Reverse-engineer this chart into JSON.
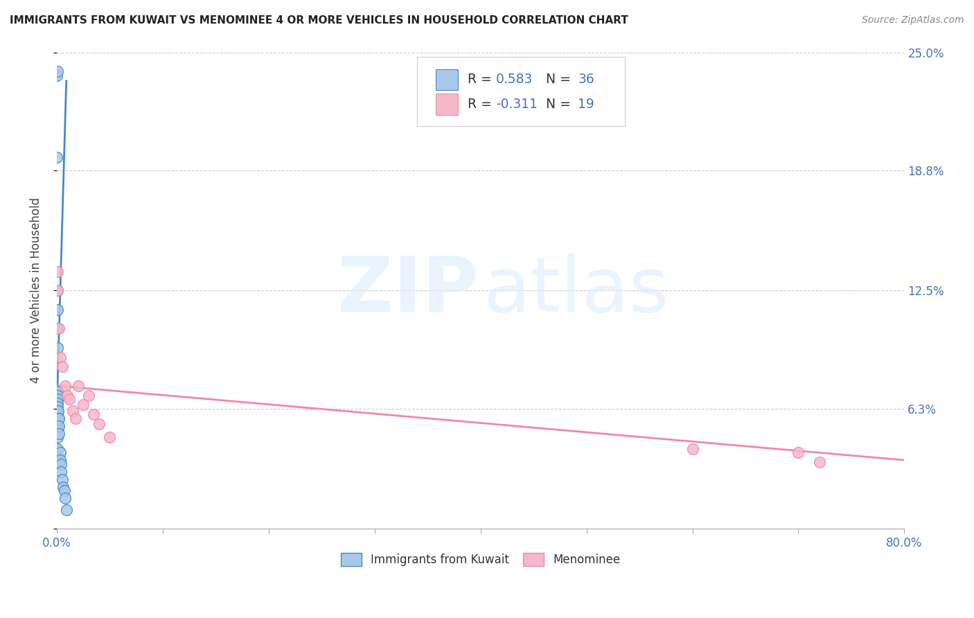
{
  "title": "IMMIGRANTS FROM KUWAIT VS MENOMINEE 4 OR MORE VEHICLES IN HOUSEHOLD CORRELATION CHART",
  "source": "Source: ZipAtlas.com",
  "ylabel": "4 or more Vehicles in Household",
  "xlim": [
    0.0,
    0.8
  ],
  "ylim": [
    0.0,
    0.25
  ],
  "xticks": [
    0.0,
    0.1,
    0.2,
    0.3,
    0.4,
    0.5,
    0.6,
    0.7,
    0.8
  ],
  "yticks": [
    0.0,
    0.063,
    0.125,
    0.188,
    0.25
  ],
  "yticklabels_right": [
    "",
    "6.3%",
    "12.5%",
    "18.8%",
    "25.0%"
  ],
  "color_blue": "#a8c8e8",
  "color_pink": "#f4b8c8",
  "color_blue_line": "#4488cc",
  "color_pink_line": "#ee88aa",
  "blue_x": [
    0.0002,
    0.0003,
    0.0004,
    0.0005,
    0.0006,
    0.0007,
    0.0008,
    0.0008,
    0.0009,
    0.0009,
    0.001,
    0.001,
    0.001,
    0.001,
    0.001,
    0.001,
    0.001,
    0.001,
    0.001,
    0.001,
    0.001,
    0.001,
    0.0015,
    0.0015,
    0.002,
    0.002,
    0.002,
    0.003,
    0.003,
    0.004,
    0.004,
    0.005,
    0.006,
    0.007,
    0.008,
    0.009
  ],
  "blue_y": [
    0.238,
    0.195,
    0.24,
    0.125,
    0.115,
    0.105,
    0.095,
    0.072,
    0.072,
    0.068,
    0.072,
    0.07,
    0.068,
    0.066,
    0.064,
    0.062,
    0.06,
    0.058,
    0.055,
    0.052,
    0.048,
    0.042,
    0.062,
    0.058,
    0.058,
    0.054,
    0.05,
    0.04,
    0.036,
    0.034,
    0.03,
    0.026,
    0.022,
    0.02,
    0.016,
    0.01
  ],
  "blue_line_x0": 0.0,
  "blue_line_x1": 0.009,
  "blue_line_y0": 0.062,
  "blue_line_y1": 0.235,
  "pink_x": [
    0.0008,
    0.001,
    0.002,
    0.003,
    0.005,
    0.008,
    0.01,
    0.012,
    0.015,
    0.018,
    0.02,
    0.025,
    0.03,
    0.035,
    0.04,
    0.05,
    0.6,
    0.7,
    0.72
  ],
  "pink_y": [
    0.135,
    0.125,
    0.105,
    0.09,
    0.085,
    0.075,
    0.07,
    0.068,
    0.062,
    0.058,
    0.075,
    0.065,
    0.07,
    0.06,
    0.055,
    0.048,
    0.042,
    0.04,
    0.035
  ],
  "pink_line_x0": 0.0,
  "pink_line_x1": 0.8,
  "pink_line_y0": 0.075,
  "pink_line_y1": 0.036
}
